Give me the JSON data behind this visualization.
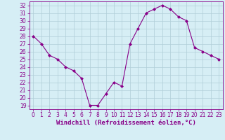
{
  "x": [
    0,
    1,
    2,
    3,
    4,
    5,
    6,
    7,
    8,
    9,
    10,
    11,
    12,
    13,
    14,
    15,
    16,
    17,
    18,
    19,
    20,
    21,
    22,
    23
  ],
  "y": [
    28,
    27,
    25.5,
    25,
    24,
    23.5,
    22.5,
    19,
    19,
    20.5,
    22,
    21.5,
    27,
    29,
    31,
    31.5,
    32,
    31.5,
    30.5,
    30,
    26.5,
    26,
    25.5,
    25
  ],
  "line_color": "#880088",
  "marker": "D",
  "marker_size": 2.0,
  "bg_color": "#d6eef5",
  "grid_color": "#b0cdd8",
  "xlabel": "Windchill (Refroidissement éolien,°C)",
  "xlabel_fontsize": 6.5,
  "ylim_min": 19,
  "ylim_max": 32,
  "xlim_min": 0,
  "xlim_max": 23,
  "yticks": [
    19,
    20,
    21,
    22,
    23,
    24,
    25,
    26,
    27,
    28,
    29,
    30,
    31,
    32
  ],
  "xticks": [
    0,
    1,
    2,
    3,
    4,
    5,
    6,
    7,
    8,
    9,
    10,
    11,
    12,
    13,
    14,
    15,
    16,
    17,
    18,
    19,
    20,
    21,
    22,
    23
  ],
  "tick_fontsize": 5.5
}
